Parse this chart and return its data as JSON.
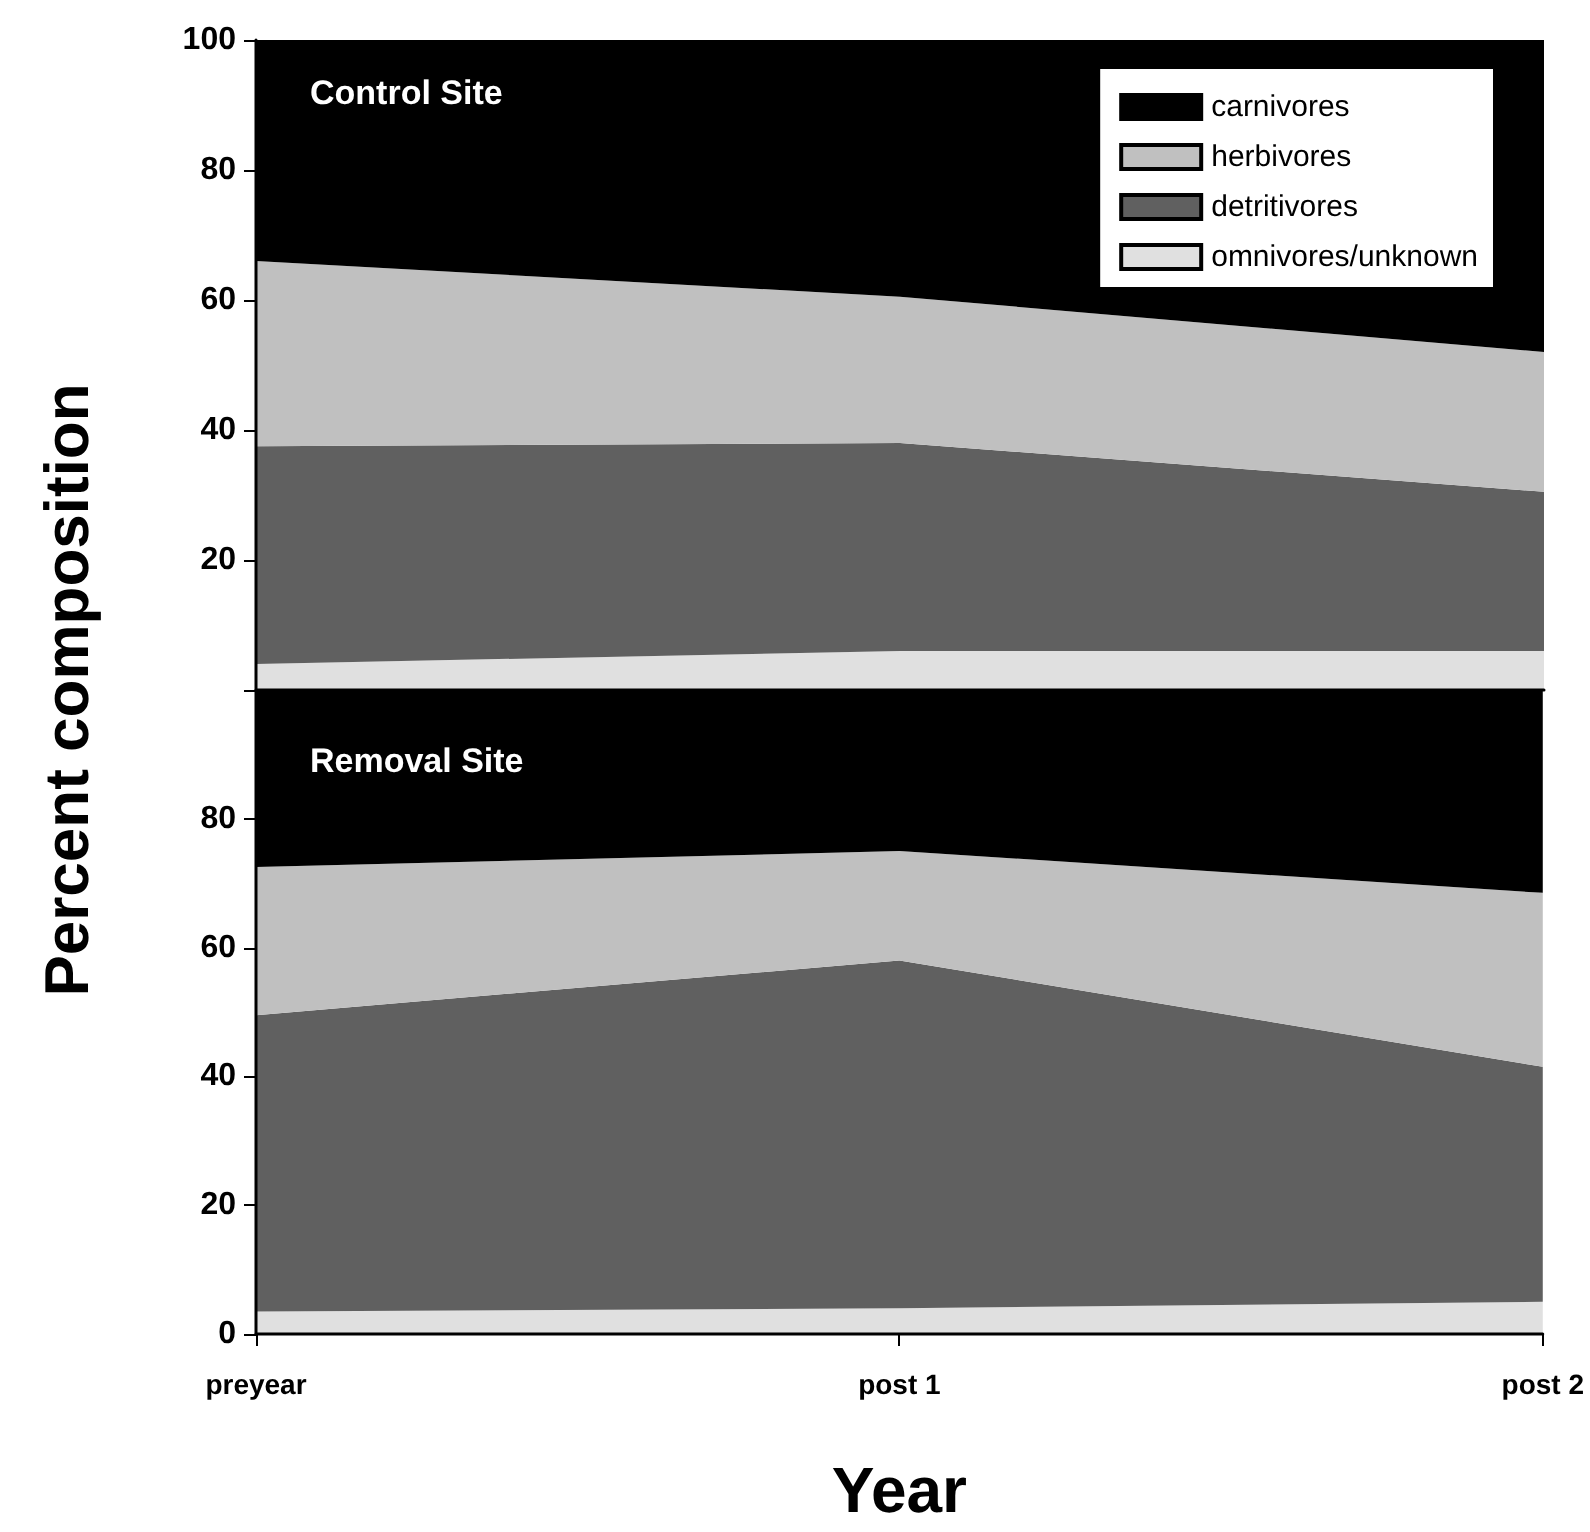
{
  "chart_data": [
    {
      "type": "area",
      "title": "Control Site",
      "ylabel": "Percent composition",
      "categories": [
        null,
        null,
        null
      ],
      "stacked": true,
      "legend": "top right",
      "grid": false,
      "tick_labels": "y",
      "ylim": [
        0,
        100
      ],
      "yticks": [
        {
          "value": 0,
          "label": null
        },
        20,
        40,
        60,
        80,
        100
      ],
      "series": [
        {
          "name": "omnivores/unknown",
          "color": "#e0e0e0",
          "values": [
            4,
            6,
            6
          ]
        },
        {
          "name": "detritivores",
          "color": "#606060",
          "values": [
            33.5,
            32,
            24.5
          ]
        },
        {
          "name": "herbivores",
          "color": "#c0c0c0",
          "values": [
            28.5,
            22.5,
            21.5
          ]
        },
        {
          "name": "carnivores",
          "color": "#000000",
          "values": [
            34,
            39.5,
            48
          ]
        }
      ]
    },
    {
      "type": "area",
      "title": "Removal Site",
      "xlabel": "Year",
      "categories": [
        "preyear",
        "post 1",
        "post 2"
      ],
      "stacked": true,
      "legend": false,
      "grid": false,
      "ylim": [
        0,
        100
      ],
      "yticks": [
        0,
        20,
        40,
        60,
        80,
        {
          "value": 100,
          "label": null
        }
      ],
      "series": [
        {
          "color": "#e0e0e0",
          "values": [
            3.5,
            4,
            5
          ]
        },
        {
          "color": "#606060",
          "values": [
            46,
            54,
            36.5
          ]
        },
        {
          "color": "#c0c0c0",
          "values": [
            23,
            17,
            27
          ]
        },
        {
          "color": "#000000",
          "values": [
            27.5,
            25,
            31.5
          ]
        }
      ]
    }
  ]
}
